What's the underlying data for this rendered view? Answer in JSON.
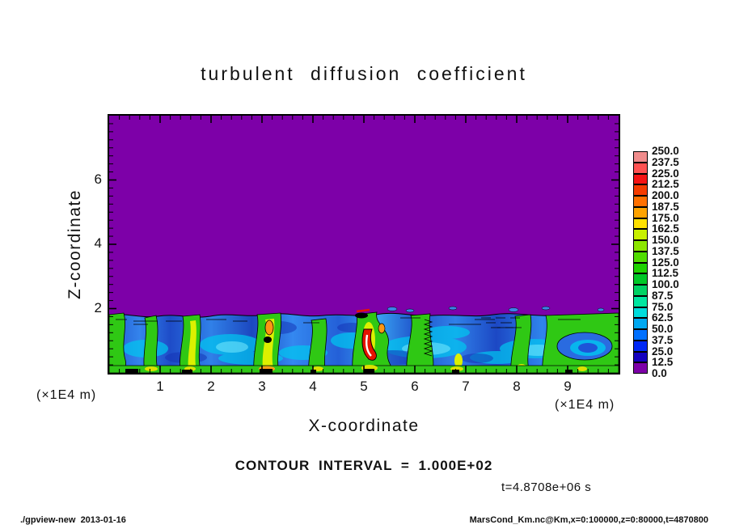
{
  "title": "turbulent diffusion coefficient",
  "axes": {
    "xlabel": "X-coordinate",
    "ylabel": "Z-coordinate",
    "x_unit_label_left": "(×1E4 m)",
    "x_unit_label_right": "(×1E4 m)",
    "xlim": [
      0,
      10
    ],
    "ylim": [
      0,
      8
    ],
    "xticks": [
      {
        "value": 1,
        "label": "1"
      },
      {
        "value": 2,
        "label": "2"
      },
      {
        "value": 3,
        "label": "3"
      },
      {
        "value": 4,
        "label": "4"
      },
      {
        "value": 5,
        "label": "5"
      },
      {
        "value": 6,
        "label": "6"
      },
      {
        "value": 7,
        "label": "7"
      },
      {
        "value": 8,
        "label": "8"
      },
      {
        "value": 9,
        "label": "9"
      }
    ],
    "yticks": [
      {
        "value": 2,
        "label": "2"
      },
      {
        "value": 4,
        "label": "4"
      },
      {
        "value": 6,
        "label": "6"
      }
    ]
  },
  "colorbar": {
    "labels_top_to_bottom": [
      "250.0",
      "237.5",
      "225.0",
      "212.5",
      "200.0",
      "187.5",
      "175.0",
      "162.5",
      "150.0",
      "137.5",
      "125.0",
      "112.5",
      "100.0",
      "87.5",
      "75.0",
      "62.5",
      "50.0",
      "37.5",
      "25.0",
      "12.5",
      "0.0"
    ],
    "colors_top_to_bottom": [
      "#F08C8C",
      "#FF5252",
      "#F51414",
      "#F53C00",
      "#FF7000",
      "#FFA300",
      "#FFE100",
      "#C8F000",
      "#8CE600",
      "#50DC00",
      "#1ED200",
      "#00C828",
      "#00D264",
      "#00E6A0",
      "#00DCDC",
      "#00A8F0",
      "#0070FF",
      "#0028F5",
      "#1400BE",
      "#7D00A8"
    ]
  },
  "annotations": {
    "contour_interval": "CONTOUR INTERVAL = 1.000E+02",
    "time": "t=4.8708e+06 s"
  },
  "footer": {
    "left": "./gpview-new  2013-01-16",
    "right": "MarsCond_Km.nc@Km,x=0:100000,z=0:80000,t=4870800"
  },
  "chart_data": {
    "type": "heatmap",
    "subtype": "filled_contour",
    "title": "turbulent diffusion coefficient",
    "xlabel": "X-coordinate",
    "ylabel": "Z-coordinate",
    "axis_units": "×1E4 m",
    "xlim": [
      0,
      10
    ],
    "ylim": [
      0,
      8
    ],
    "x_range_m": "x=0:100000",
    "z_range_m": "z=0:80000",
    "time_seconds": 4870800,
    "time_label": "t=4.8708e+06 s",
    "contour_interval": 100.0,
    "fill_level_step": 12.5,
    "fill_levels_low_to_high": [
      0.0,
      12.5,
      25.0,
      37.5,
      50.0,
      62.5,
      75.0,
      87.5,
      100.0,
      112.5,
      125.0,
      137.5,
      150.0,
      162.5,
      175.0,
      187.5,
      200.0,
      212.5,
      225.0,
      237.5,
      250.0
    ],
    "fill_colors_low_to_high": [
      "#7D00A8",
      "#1400BE",
      "#0028F5",
      "#0070FF",
      "#00A8F0",
      "#00DCDC",
      "#00E6A0",
      "#00D264",
      "#00C828",
      "#1ED200",
      "#50DC00",
      "#8CE600",
      "#C8F000",
      "#FFE100",
      "#FFA300",
      "#FF7000",
      "#F53C00",
      "#F51414",
      "#FF5252",
      "#F08C8C"
    ],
    "legend_position": "right",
    "grid": false,
    "field_description": {
      "background_value": 0,
      "background_color": "#7D00A8",
      "boundary_layer_top_z": 2,
      "notes": "Diffusion coefficient is ~0 (purple) everywhere above z≈2×1E4 m. A turbulent boundary layer occupies 0<z<≈2 across the full x range (0–10×1E4 m), mostly 12.5–100 (blue/cyan) with green convective plumes (~100–150) near x≈0.3, 0.9, 1.6, 3.1, 4.1, 5.0, 6.3, 8.0, 9.5 and yellow/orange cores (~150–200); the maximum, a hook-shaped streak exceeding 250 (red with white core), sits near x≈5.1, z≈0.5."
    }
  }
}
